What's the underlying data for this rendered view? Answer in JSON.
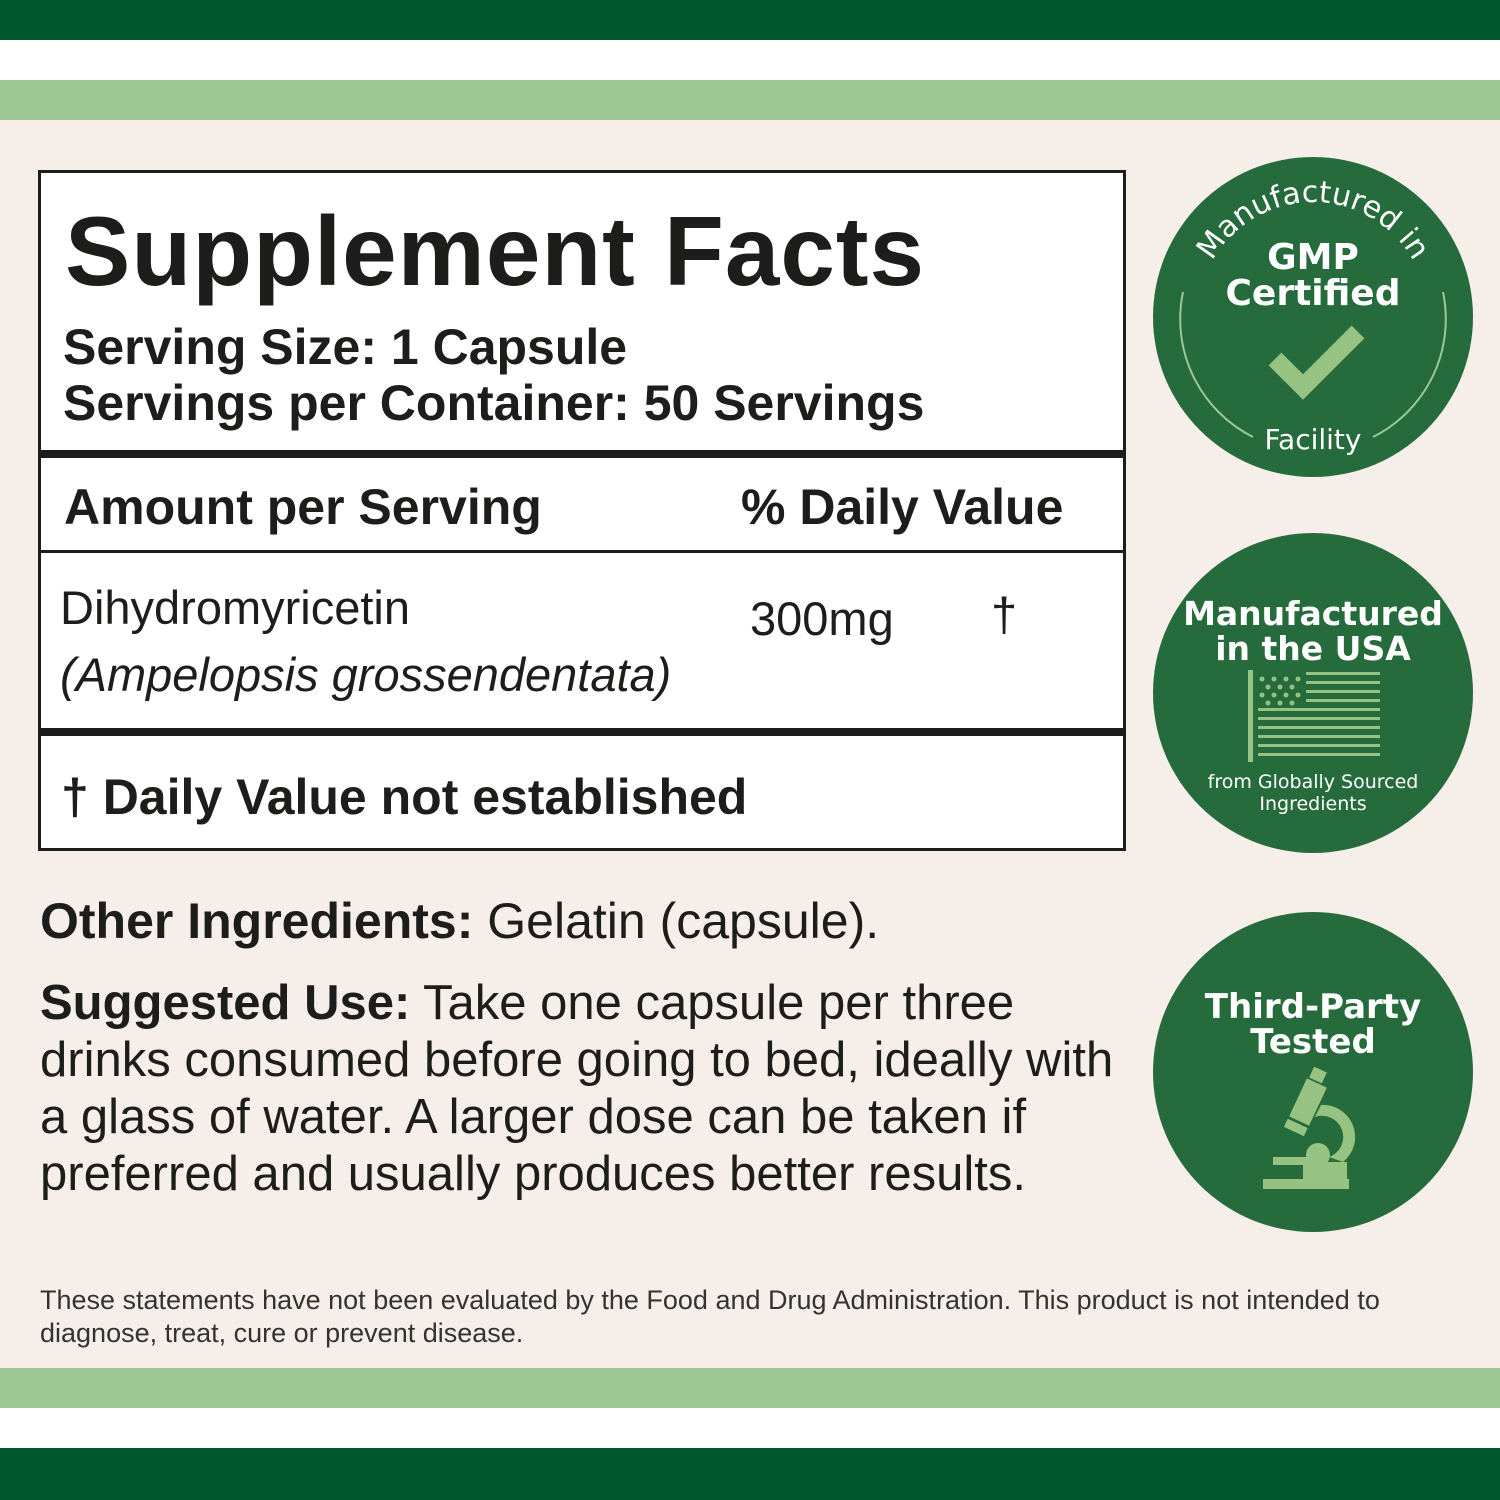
{
  "colors": {
    "dark_green": "#00582f",
    "light_green": "#9dc795",
    "background": "#f6eee9",
    "badge_green": "#256b3c",
    "icon_green": "#96c382"
  },
  "facts": {
    "title": "Supplement Facts",
    "serving_size": "Serving Size: 1 Capsule",
    "servings_per_container": "Servings per Container: 50 Servings",
    "col_amount": "Amount per Serving",
    "col_dv": "% Daily Value",
    "ingredient": {
      "name": "Dihydromyricetin",
      "source": "(Ampelopsis grossendentata)",
      "amount": "300mg",
      "dv": "†"
    },
    "footnote": "† Daily Value not established"
  },
  "other_ingredients": {
    "label": "Other Ingredients:",
    "text": " Gelatin (capsule)."
  },
  "suggested_use": {
    "label": "Suggested Use:",
    "text": " Take one capsule per three drinks consumed before going to bed, ideally with a glass of water. A larger dose can be taken if preferred and usually produces better results."
  },
  "disclaimer": "These statements have not been evaluated by the Food and Drug Administration. This product is not intended to diagnose, treat, cure or prevent disease.",
  "badges": [
    {
      "top": "Manufactured in",
      "main1": "GMP",
      "main2": "Certified",
      "bottom": "Facility",
      "icon": "checkmark-icon"
    },
    {
      "main1": "Manufactured",
      "main2": "in the USA",
      "sub1": "from Globally Sourced",
      "sub2": "Ingredients",
      "icon": "us-flag-icon"
    },
    {
      "main1": "Third-Party",
      "main2": "Tested",
      "icon": "microscope-icon"
    }
  ]
}
